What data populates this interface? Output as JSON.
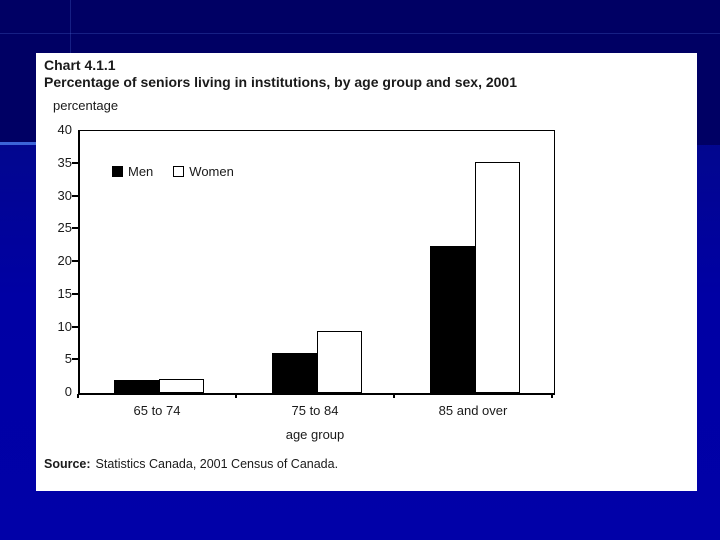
{
  "slide": {
    "background_top_color": "#000064",
    "background_bottom_color": "#0000a4",
    "accent_line_color": "#3c64d8"
  },
  "panel": {
    "title_line1": "Chart 4.1.1",
    "title_line2": "Percentage of seniors living in institutions, by age group and sex, 2001",
    "y_unit_label": "percentage",
    "x_axis_title": "age group",
    "source_label": "Source:",
    "source_text": "Statistics Canada, 2001 Census of Canada."
  },
  "chart_data": {
    "type": "bar",
    "title": "Percentage of seniors living in institutions, by age group and sex, 2001",
    "categories": [
      "65 to 74",
      "75 to 84",
      "85 and over"
    ],
    "series": [
      {
        "name": "Men",
        "color": "#000000",
        "values": [
          2.0,
          6.1,
          22.4
        ]
      },
      {
        "name": "Women",
        "color": "#ffffff",
        "values": [
          2.2,
          9.4,
          35.2
        ]
      }
    ],
    "xlabel": "age group",
    "ylabel": "percentage",
    "ylim": [
      0,
      40
    ],
    "yticks": [
      0,
      5,
      10,
      15,
      20,
      25,
      30,
      35,
      40
    ],
    "grid": false,
    "legend_position": "inside-top-left"
  }
}
